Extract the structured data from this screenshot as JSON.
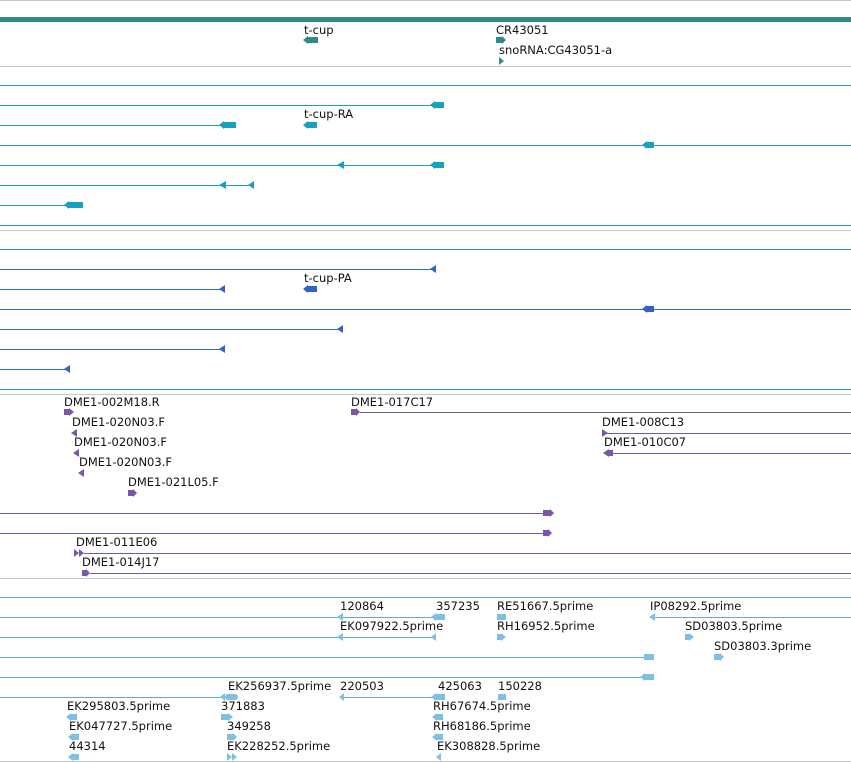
{
  "colors": {
    "gene": "#2e8b8a",
    "transcript": "#1a9fbf",
    "protein": "#2f63c9",
    "clone": "#7a55a8",
    "est": "#7fbfe3",
    "separator": "#c8c8c8"
  },
  "tracks": {
    "gene": {
      "labels": [
        "t-cup",
        "CR43051",
        "snoRNA:CG43051-a"
      ]
    },
    "transcript": {
      "labels": [
        "t-cup-RA"
      ]
    },
    "protein": {
      "labels": [
        "t-cup-PA"
      ]
    },
    "clone": {
      "labels": [
        "DME1-002M18.R",
        "DME1-017C17",
        "DME1-020N03.F",
        "DME1-008C13",
        "DME1-020N03.F",
        "DME1-010C07",
        "DME1-020N03.F",
        "DME1-021L05.F",
        "DME1-011E06",
        "DME1-014J17"
      ]
    },
    "est": {
      "labels": [
        "120864",
        "357235",
        "RE51667.5prime",
        "IP08292.5prime",
        "EK097922.5prime",
        "RH16952.5prime",
        "SD03803.5prime",
        "SD03803.3prime",
        "EK256937.5prime",
        "220503",
        "425063",
        "150228",
        "EK295803.5prime",
        "371883",
        "RH67674.5prime",
        "EK047727.5prime",
        "349258",
        "RH68186.5prime",
        "44314",
        "EK228252.5prime",
        "EK308828.5prime"
      ]
    }
  }
}
